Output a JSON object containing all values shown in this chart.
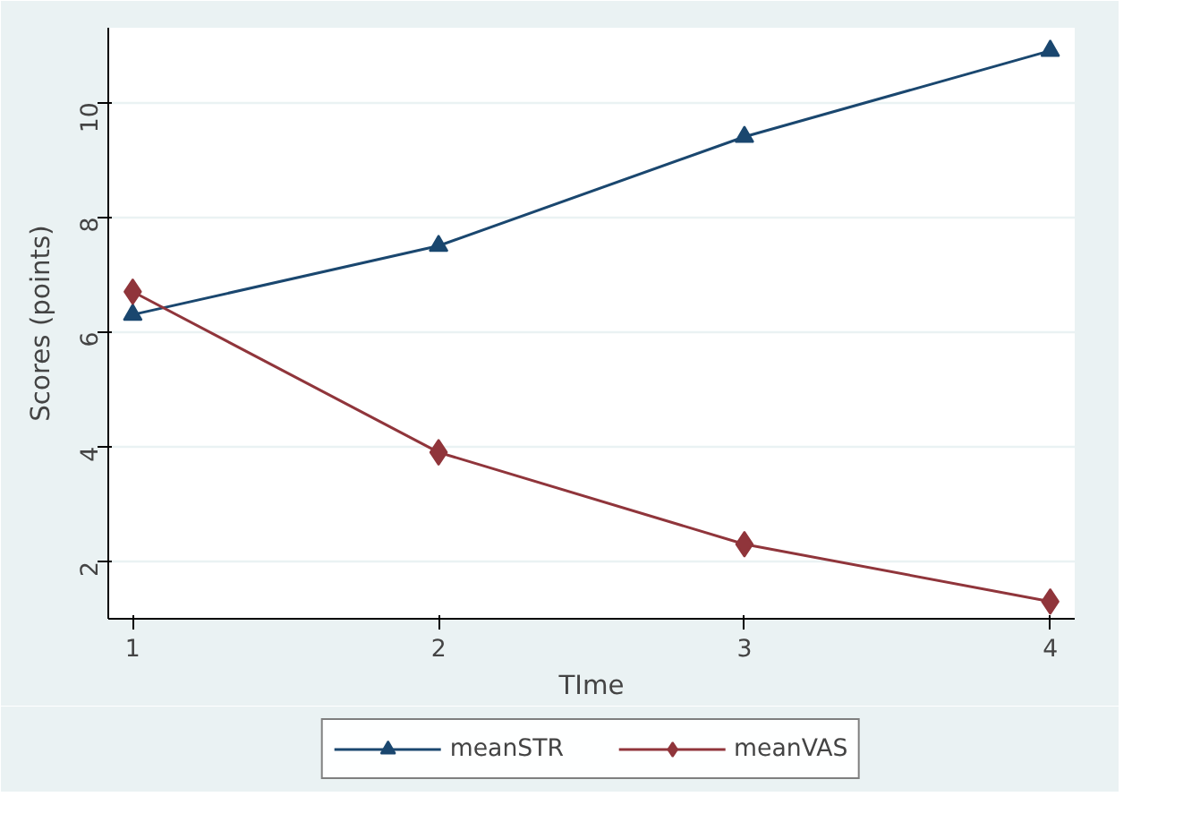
{
  "chart_data": {
    "type": "line",
    "xlabel": "TIme",
    "ylabel": "Scores (points)",
    "x": [
      1,
      2,
      3,
      4
    ],
    "series": [
      {
        "name": "meanSTR",
        "color": "#1a476f",
        "marker": "triangle",
        "values": [
          6.3,
          7.5,
          9.4,
          10.9
        ]
      },
      {
        "name": "meanVAS",
        "color": "#90353b",
        "marker": "diamond",
        "values": [
          6.7,
          3.9,
          2.3,
          1.3
        ]
      }
    ],
    "xlim": [
      0.92,
      4.08
    ],
    "xticks": [
      1,
      2,
      3,
      4
    ],
    "ylim": [
      1.0,
      11.3
    ],
    "yticks": [
      2,
      4,
      6,
      8,
      10
    ],
    "grid": "y",
    "legend": "bottom",
    "line_style": "solid"
  }
}
